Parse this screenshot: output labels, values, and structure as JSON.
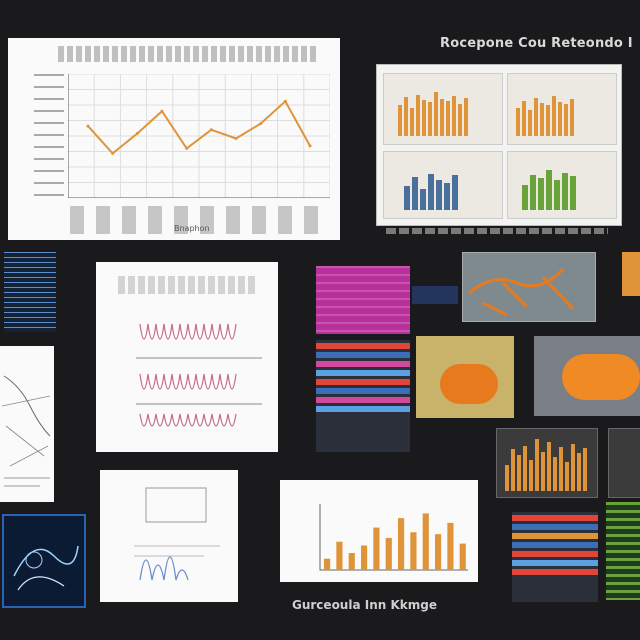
{
  "headings": {
    "top_right": "Rocepone Cou Reteondo I",
    "bottom": "Gurceoula Inn Kkmge"
  },
  "main_chart": {
    "caption": "Bnaphon",
    "chart_data": {
      "type": "line",
      "series": [
        {
          "values": [
            58,
            36,
            52,
            70,
            40,
            55,
            48,
            60,
            78,
            42
          ]
        }
      ],
      "ylim": [
        0,
        100
      ],
      "grid": true,
      "line_color": "#e0943a"
    }
  },
  "colors": {
    "background": "#1a1a1c",
    "orange": "#e0943a",
    "green": "#6aa33a",
    "magenta": "#b8309a",
    "blue": "#3a6fb8"
  },
  "bar_panel_bottom": {
    "chart_data": {
      "type": "bar",
      "values": [
        12,
        30,
        18,
        26,
        45,
        34,
        55,
        40,
        60,
        38,
        50,
        28
      ],
      "ylim": [
        0,
        70
      ]
    }
  },
  "bar_panel_right": {
    "chart_data": {
      "type": "bar",
      "values": [
        40,
        65,
        55,
        70,
        48,
        80,
        60,
        75,
        52,
        68,
        44,
        72,
        58,
        66
      ],
      "ylim": [
        0,
        90
      ]
    }
  },
  "dashboard_bars": {
    "orange": [
      60,
      75,
      55,
      80,
      70,
      65,
      85,
      72,
      68,
      78,
      62,
      74
    ],
    "green": [
      50,
      70,
      65,
      80,
      60,
      75,
      68
    ],
    "mixed": [
      40,
      55,
      35,
      60,
      50,
      45,
      58
    ]
  }
}
